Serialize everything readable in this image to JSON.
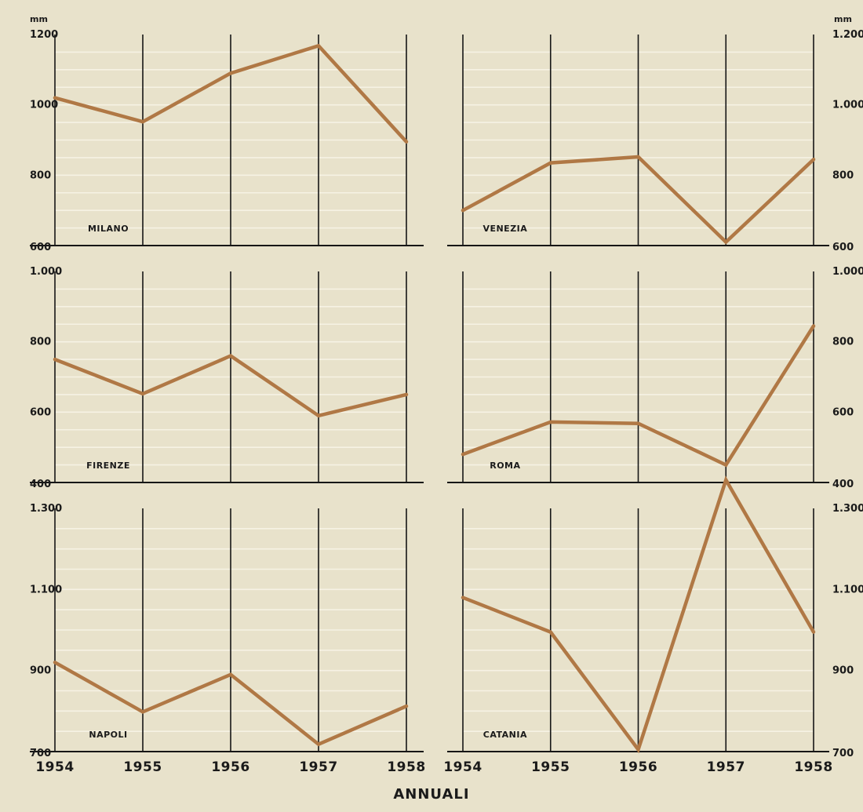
{
  "chart_data": {
    "type": "line",
    "footer_label": "ANNUALI",
    "x_labels": [
      "1954",
      "1955",
      "1956",
      "1957",
      "1958"
    ],
    "panels": [
      {
        "name": "MILANO",
        "x": [
          1954,
          1955,
          1956,
          1957,
          1958
        ],
        "values": [
          1020,
          952,
          1090,
          1168,
          895
        ],
        "ylim": [
          600,
          1200
        ],
        "yticks": [
          600,
          800,
          1000,
          1200
        ],
        "ytick_labels": [
          "600",
          "800",
          "1000",
          "1200"
        ],
        "unit": "mm",
        "axis_side": "left"
      },
      {
        "name": "VENEZIA",
        "x": [
          1954,
          1955,
          1956,
          1957,
          1958
        ],
        "values": [
          700,
          835,
          852,
          610,
          845
        ],
        "ylim": [
          600,
          1200
        ],
        "yticks": [
          600,
          800,
          1000,
          1200
        ],
        "ytick_labels": [
          "600",
          "800",
          "1.000",
          "1.200"
        ],
        "unit": "mm",
        "axis_side": "right"
      },
      {
        "name": "FIRENZE",
        "x": [
          1954,
          1955,
          1956,
          1957,
          1958
        ],
        "values": [
          750,
          652,
          760,
          590,
          650
        ],
        "ylim": [
          400,
          1000
        ],
        "yticks": [
          400,
          600,
          800,
          1000
        ],
        "ytick_labels": [
          "400",
          "600",
          "800",
          "1.000"
        ],
        "unit": "",
        "axis_side": "left"
      },
      {
        "name": "ROMA",
        "x": [
          1954,
          1955,
          1956,
          1957,
          1958
        ],
        "values": [
          480,
          572,
          568,
          450,
          845
        ],
        "ylim": [
          400,
          1000
        ],
        "yticks": [
          400,
          600,
          800,
          1000
        ],
        "ytick_labels": [
          "400",
          "600",
          "800",
          "1.000"
        ],
        "unit": "",
        "axis_side": "right"
      },
      {
        "name": "NAPOLI",
        "x": [
          1954,
          1955,
          1956,
          1957,
          1958
        ],
        "values": [
          920,
          798,
          890,
          718,
          812
        ],
        "ylim": [
          700,
          1300
        ],
        "yticks": [
          700,
          900,
          1100,
          1300
        ],
        "ytick_labels": [
          "700",
          "900",
          "1.100",
          "1.300"
        ],
        "unit": "",
        "axis_side": "left"
      },
      {
        "name": "CATANIA",
        "x": [
          1954,
          1955,
          1956,
          1957,
          1958
        ],
        "values": [
          1080,
          995,
          705,
          1370,
          995
        ],
        "ylim": [
          700,
          1300
        ],
        "yticks": [
          700,
          900,
          1100,
          1300
        ],
        "ytick_labels": [
          "700",
          "900",
          "1.100",
          "1.300"
        ],
        "unit": "",
        "axis_side": "right"
      }
    ],
    "grid": true,
    "line_color": "#b07845",
    "background_color": "#e8e2cb"
  }
}
